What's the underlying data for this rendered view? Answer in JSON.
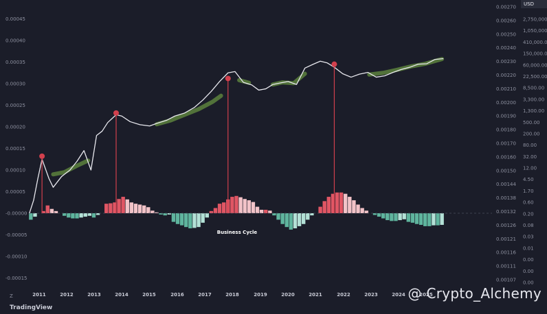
{
  "watermark": "@ Crypto_Alchemy",
  "brand": "TradingView",
  "currency_label": "USD",
  "corner_label": "Z",
  "chart_data": {
    "type": "line",
    "annotation": "Business Cycle",
    "x_ticks": [
      "2011",
      "2012",
      "2013",
      "2014",
      "2015",
      "2016",
      "2017",
      "2018",
      "2019",
      "2020",
      "2021",
      "2022",
      "2023",
      "2024",
      "2025"
    ],
    "left_axis": {
      "ticks": [
        "0.00045",
        "0.00040",
        "0.00035",
        "0.00030",
        "0.00025",
        "0.00020",
        "0.00015",
        "0.00010",
        "0.00005",
        "-0.00000",
        "-0.00005",
        "-0.00010",
        "-0.00015"
      ],
      "values": [
        0.00045,
        0.0004,
        0.00035,
        0.0003,
        0.00025,
        0.0002,
        0.00015,
        0.0001,
        5e-05,
        0,
        -5e-05,
        -0.0001,
        -0.00015
      ]
    },
    "mid_axis_ticks": [
      "0.00270",
      "0.00260",
      "0.00250",
      "0.00240",
      "0.00230",
      "0.00220",
      "0.00210",
      "0.00200",
      "0.00190",
      "0.00180",
      "0.00170",
      "0.00160",
      "0.00150",
      "0.00144",
      "0.00138",
      "0.00132",
      "0.00126",
      "0.00121",
      "0.00116",
      "0.00111",
      "0.00107"
    ],
    "price_axis_ticks": [
      "2,750,000.00",
      "1,050,000.00",
      "410,000.00",
      "150,000.00",
      "60,000.00",
      "22,500.00",
      "8,500.00",
      "3,300.00",
      "1,300.00",
      "500.00",
      "200.00",
      "80.00",
      "32.00",
      "12.00",
      "4.50",
      "1.70",
      "0.60",
      "0.20",
      "0.08",
      "0.03",
      "0.01",
      "0.00",
      "0.00",
      "0.00"
    ],
    "price_line": {
      "x": [
        2010.75,
        2010.9,
        2011.05,
        2011.2,
        2011.45,
        2011.6,
        2011.9,
        2012.2,
        2012.45,
        2012.7,
        2012.95,
        2013.15,
        2013.35,
        2013.55,
        2013.85,
        2014.05,
        2014.35,
        2014.7,
        2015.05,
        2015.3,
        2015.65,
        2015.95,
        2016.3,
        2016.65,
        2016.95,
        2017.25,
        2017.55,
        2017.85,
        2018.1,
        2018.4,
        2018.7,
        2018.95,
        2019.2,
        2019.45,
        2019.75,
        2020.0,
        2020.3,
        2020.6,
        2020.9,
        2021.15,
        2021.4,
        2021.65,
        2021.95,
        2022.25,
        2022.55,
        2022.85,
        2023.15,
        2023.45,
        2023.75,
        2024.05,
        2024.35,
        2024.65,
        2024.95,
        2025.25,
        2025.55
      ],
      "y": [
        0.0,
        3e-05,
        8e-05,
        0.000125,
        8e-05,
        6e-05,
        8.5e-05,
        0.0001,
        0.00012,
        0.000145,
        0.0001,
        0.00018,
        0.00019,
        0.00021,
        0.000228,
        0.000225,
        0.000212,
        0.000205,
        0.000202,
        0.000208,
        0.000215,
        0.000225,
        0.000232,
        0.000245,
        0.000262,
        0.000282,
        0.000305,
        0.000325,
        0.000328,
        0.000303,
        0.000297,
        0.000285,
        0.000288,
        0.000298,
        0.000302,
        0.000305,
        0.000298,
        0.000336,
        0.000345,
        0.000352,
        0.000348,
        0.000338,
        0.000323,
        0.000315,
        0.000322,
        0.000326,
        0.000315,
        0.000318,
        0.000326,
        0.000333,
        0.000338,
        0.000345,
        0.000346,
        0.000356,
        0.000358
      ]
    },
    "trend_segments": [
      {
        "x": [
          2011.6,
          2012.0,
          2012.45,
          2012.85
        ],
        "y": [
          9e-05,
          9.5e-05,
          0.00011,
          0.000122
        ]
      },
      {
        "x": [
          2015.3,
          2015.8,
          2016.3,
          2016.8,
          2017.3,
          2017.6
        ],
        "y": [
          0.000206,
          0.000215,
          0.000228,
          0.000241,
          0.000258,
          0.000272
        ]
      },
      {
        "x": [
          2018.25,
          2018.6
        ],
        "y": [
          0.000308,
          0.000302
        ]
      },
      {
        "x": [
          2019.45,
          2019.8,
          2020.2,
          2020.6
        ],
        "y": [
          0.000298,
          0.000303,
          0.000301,
          0.000323
        ]
      },
      {
        "x": [
          2022.9,
          2023.4,
          2023.9,
          2024.4,
          2024.9,
          2025.5
        ],
        "y": [
          0.000321,
          0.000325,
          0.000332,
          0.00034,
          0.000346,
          0.000357
        ]
      }
    ],
    "cycle_peaks": [
      {
        "x": 2011.2,
        "y": 0.000132
      },
      {
        "x": 2013.85,
        "y": 0.000232
      },
      {
        "x": 2017.85,
        "y": 0.000312
      },
      {
        "x": 2021.65,
        "y": 0.000345
      }
    ],
    "histogram": {
      "x": [
        2010.8,
        2010.95,
        2011.1,
        2011.25,
        2011.4,
        2011.55,
        2011.7,
        2011.85,
        2012.0,
        2012.15,
        2012.3,
        2012.45,
        2012.6,
        2012.75,
        2012.9,
        2013.05,
        2013.2,
        2013.35,
        2013.5,
        2013.65,
        2013.8,
        2013.95,
        2014.1,
        2014.25,
        2014.4,
        2014.55,
        2014.7,
        2014.85,
        2015.0,
        2015.15,
        2015.3,
        2015.45,
        2015.6,
        2015.75,
        2015.9,
        2016.05,
        2016.2,
        2016.35,
        2016.5,
        2016.65,
        2016.8,
        2016.95,
        2017.1,
        2017.25,
        2017.4,
        2017.55,
        2017.7,
        2017.85,
        2018.0,
        2018.15,
        2018.3,
        2018.45,
        2018.6,
        2018.75,
        2018.9,
        2019.05,
        2019.2,
        2019.35,
        2019.5,
        2019.65,
        2019.8,
        2019.95,
        2020.1,
        2020.25,
        2020.4,
        2020.55,
        2020.7,
        2020.85,
        2021.0,
        2021.15,
        2021.3,
        2021.45,
        2021.6,
        2021.75,
        2021.9,
        2022.05,
        2022.2,
        2022.35,
        2022.5,
        2022.65,
        2022.8,
        2022.95,
        2023.1,
        2023.25,
        2023.4,
        2023.55,
        2023.7,
        2023.85,
        2024.0,
        2024.15,
        2024.3,
        2024.45,
        2024.6,
        2024.75,
        2024.9,
        2025.05,
        2025.2,
        2025.35,
        2025.5
      ],
      "values": [
        -1.5e-05,
        -8e-06,
        0.0,
        5e-06,
        1.8e-05,
        1e-05,
        5e-06,
        0.0,
        -6e-06,
        -1e-05,
        -1.2e-05,
        -1.2e-05,
        -1e-05,
        -8e-06,
        -6e-06,
        -1e-05,
        -4e-06,
        0.0,
        2.2e-05,
        2.3e-05,
        2.5e-05,
        3.3e-05,
        3.8e-05,
        3.2e-05,
        2.5e-05,
        2.2e-05,
        2e-05,
        1.8e-05,
        1.4e-05,
        6e-06,
        2e-06,
        -3e-06,
        -5e-06,
        -3e-06,
        -2e-05,
        -2.5e-05,
        -2.8e-05,
        -3.2e-05,
        -3.5e-05,
        -3.4e-05,
        -3.2e-05,
        -2.2e-05,
        -1e-05,
        5e-06,
        1.2e-05,
        2.2e-05,
        2.5e-05,
        3.2e-05,
        3.8e-05,
        4e-05,
        3.7e-05,
        3.3e-05,
        3e-05,
        2.6e-05,
        1.5e-05,
        8e-06,
        8e-06,
        6e-06,
        -5e-06,
        -1.5e-05,
        -2.5e-05,
        -3.2e-05,
        -3.8e-05,
        -3.5e-05,
        -3e-05,
        -2.5e-05,
        -1.5e-05,
        -5e-06,
        0.0,
        1.5e-05,
        2.8e-05,
        3.8e-05,
        4.5e-05,
        4.8e-05,
        4.8e-05,
        4.5e-05,
        3.8e-05,
        3e-05,
        2e-05,
        1.2e-05,
        6e-06,
        0.0,
        -4e-06,
        -8e-06,
        -1.2e-05,
        -1.6e-05,
        -1.8e-05,
        -1.8e-05,
        -1.6e-05,
        -1.4e-05,
        -2e-05,
        -2.2e-05,
        -2.5e-05,
        -2.7e-05,
        -3e-05,
        -3e-05,
        -2.8e-05,
        -2.8e-05,
        -2.7e-05
      ]
    },
    "colors": {
      "background": "#1b1d29",
      "price_line": "#e8e8ee",
      "trend": "#7fb848",
      "peak": "#d2404d",
      "hist_rising": "#e05664",
      "hist_falling": "#f2c3c8",
      "hist_neg_falling": "#5fb59e",
      "hist_neg_rising": "#b3e1d6"
    },
    "grid": false
  }
}
